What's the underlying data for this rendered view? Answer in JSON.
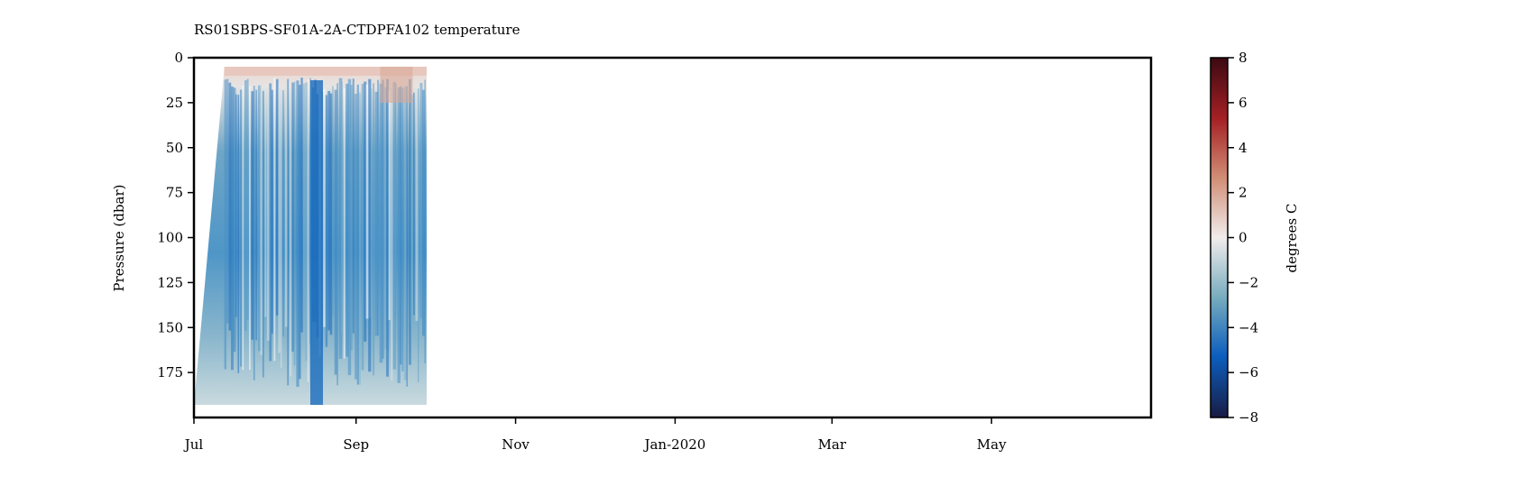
{
  "chart_data": {
    "type": "heatmap",
    "title": "RS01SBPS-SF01A-2A-CTDPFA102 temperature",
    "xlabel": "",
    "ylabel": "Pressure (dbar)",
    "x_tick_labels": [
      "Jul",
      "Sep",
      "Nov",
      "Jan-2020",
      "Mar",
      "May"
    ],
    "x_tick_dates": [
      "2019-07-01",
      "2019-09-01",
      "2019-11-01",
      "2020-01-01",
      "2020-03-01",
      "2020-05-01"
    ],
    "xlim": [
      "2019-07-01",
      "2020-07-01"
    ],
    "y_ticks": [
      0,
      25,
      50,
      75,
      100,
      125,
      150,
      175
    ],
    "ylim": [
      200,
      0
    ],
    "y_inverted": true,
    "data_extent": {
      "x": [
        "2019-07-01",
        "2019-09-28"
      ],
      "y": [
        5,
        193
      ]
    },
    "colorbar": {
      "label": "degrees C",
      "ticks": [
        8,
        6,
        4,
        2,
        0,
        -2,
        -4,
        -6,
        -8
      ],
      "tick_labels": [
        "8",
        "6",
        "4",
        "2",
        "0",
        "−2",
        "−4",
        "−6",
        "−8"
      ],
      "range": [
        -8,
        8
      ],
      "colormap": "balance",
      "colors": [
        "#181c43",
        "#0c5ebe",
        "#75aabe",
        "#f1eceb",
        "#d08b73",
        "#a52125",
        "#3c0912"
      ]
    },
    "grid": false,
    "legend": "none"
  }
}
